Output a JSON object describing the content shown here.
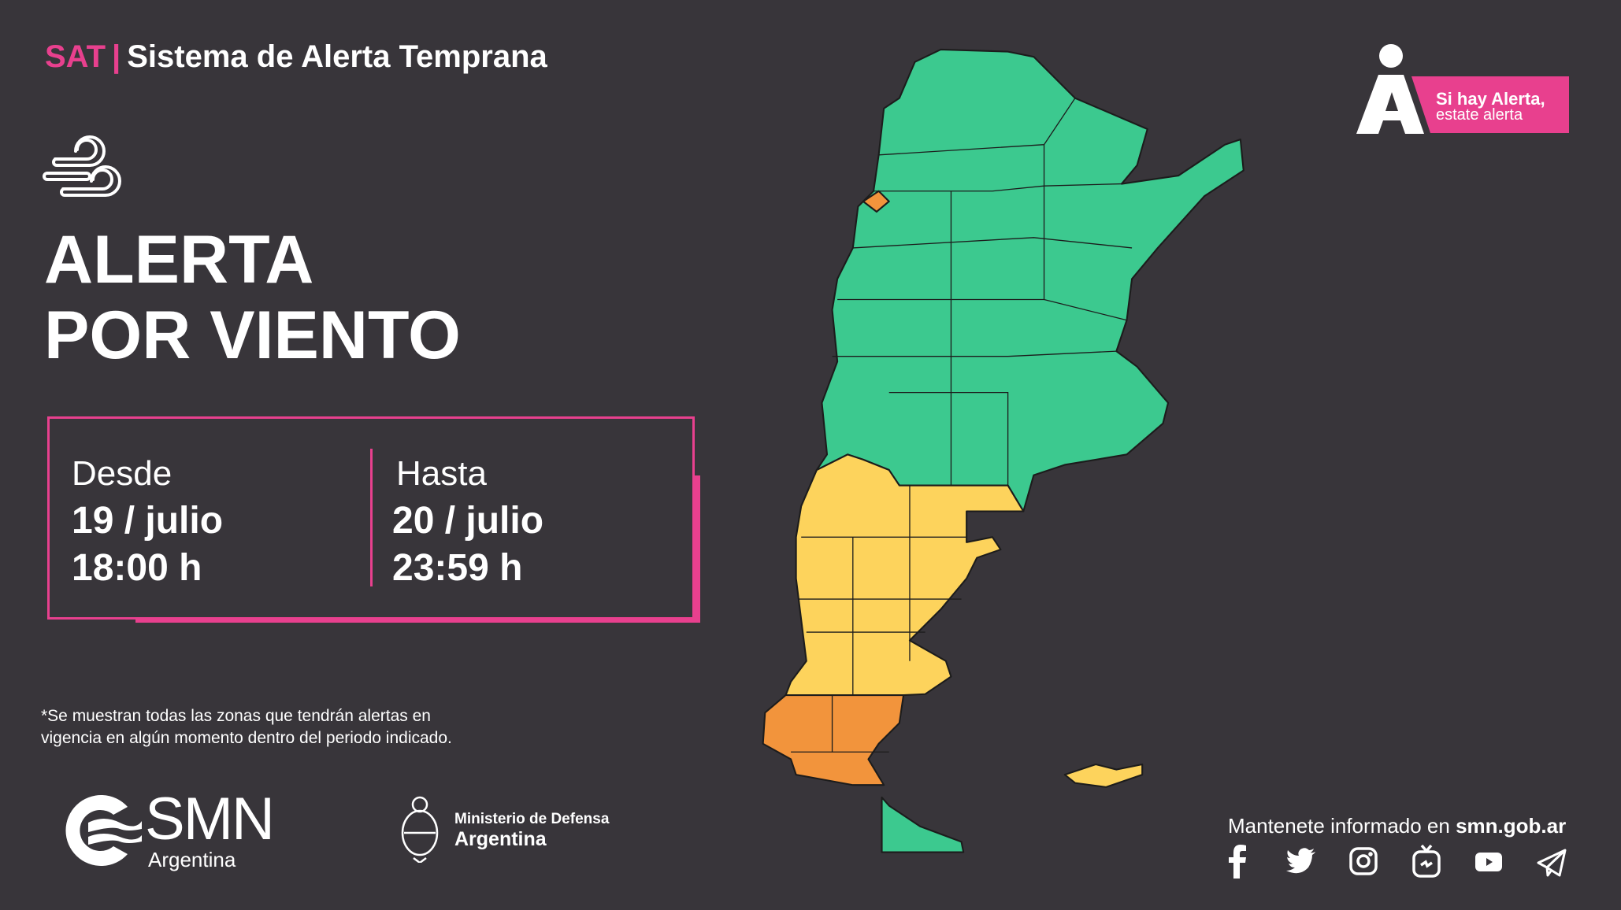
{
  "header": {
    "acronym": "SAT",
    "separator": "|",
    "system_name": "Sistema de Alerta Temprana"
  },
  "alert": {
    "icon": "wind-icon",
    "title_line1": "ALERTA",
    "title_line2": "POR VIENTO"
  },
  "period": {
    "from_label": "Desde",
    "from_date": "19 / julio",
    "from_time": "18:00 h",
    "to_label": "Hasta",
    "to_date": "20 / julio",
    "to_time": "23:59 h"
  },
  "footnote": {
    "line1": "*Se muestran todas las zonas que tendrán alertas en",
    "line2": "vigencia en algún momento dentro del periodo indicado."
  },
  "logos": {
    "smn": {
      "name": "SMN",
      "country": "Argentina"
    },
    "ministry": {
      "line1": "Ministerio de Defensa",
      "line2": "Argentina"
    },
    "campaign": {
      "line1": "Si hay Alerta,",
      "line2": "estate alerta"
    }
  },
  "footer": {
    "follow_text": "Mantenete informado en ",
    "site": "smn.gob.ar",
    "social": [
      "facebook-icon",
      "twitter-icon",
      "instagram-icon",
      "igtv-icon",
      "youtube-icon",
      "telegram-icon"
    ]
  },
  "map": {
    "levels": {
      "none": "#3cc98f",
      "yellow": "#fdd35c",
      "orange": "#f2943c"
    }
  },
  "colors": {
    "background": "#38353a",
    "accent": "#e8408e"
  }
}
